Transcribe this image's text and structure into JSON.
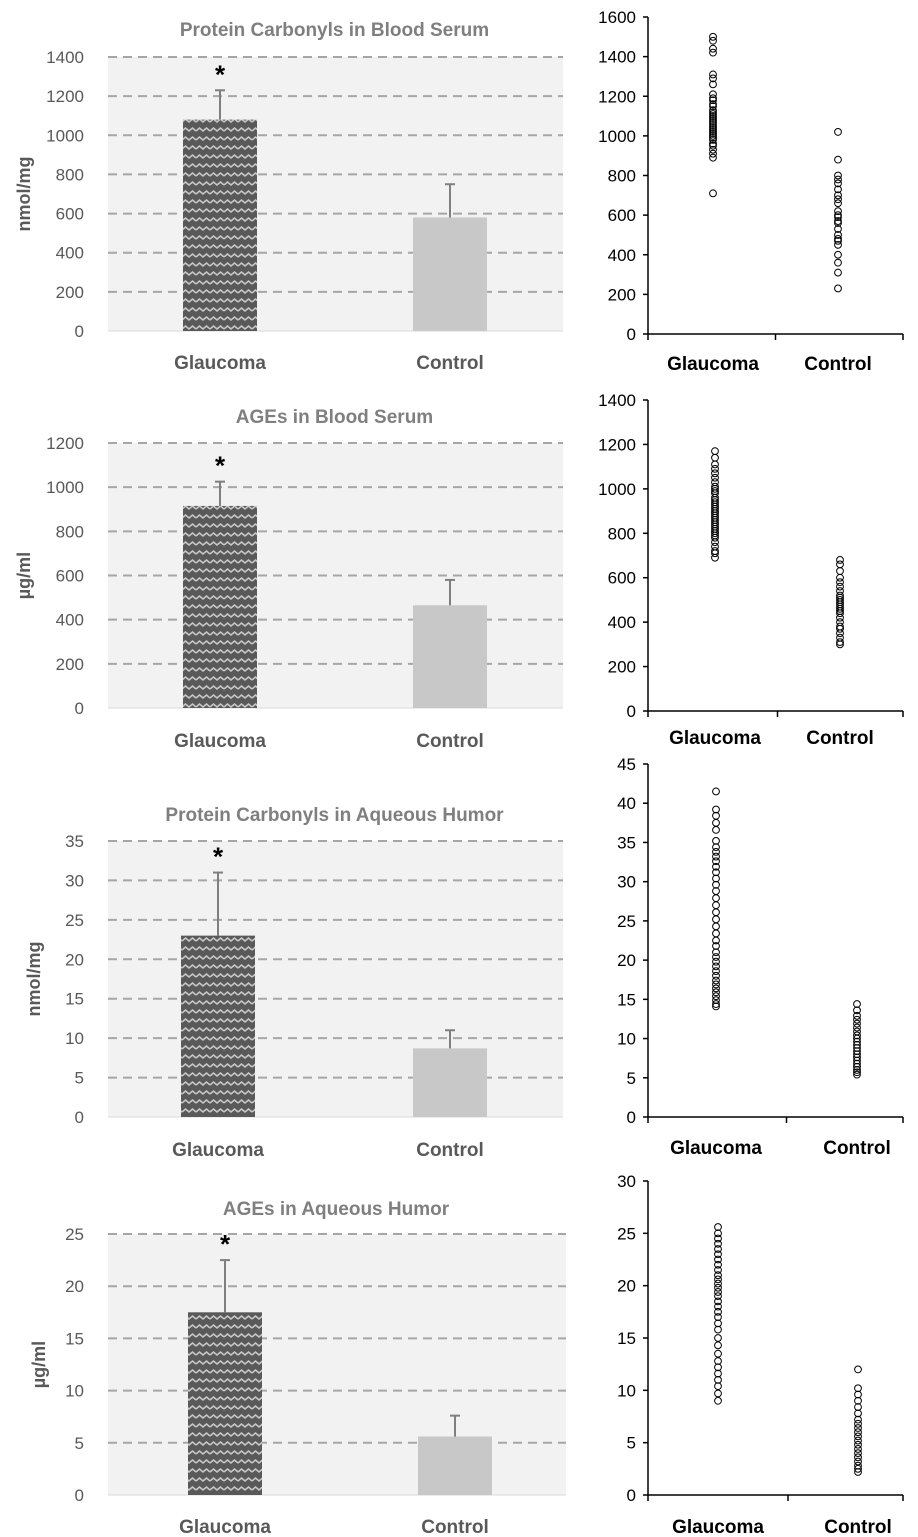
{
  "colors": {
    "plot_background": "#f2f2f2",
    "gridline": "#a6a6a6",
    "glaucoma_bar_base": "#595959",
    "glaucoma_bar_pattern": "#c8c8c8",
    "control_bar": "#c8c8c8",
    "error_bar": "#7f7f7f",
    "scatter_marker": "#000000"
  },
  "chart_data": [
    {
      "id": "bar1",
      "type": "bar",
      "title": "Protein Carbonyls in Blood Serum",
      "ylabel": "nmol/mg",
      "xlabel": "",
      "categories": [
        "Glaucoma",
        "Control"
      ],
      "values": [
        1080,
        580
      ],
      "error_plus": [
        150,
        170
      ],
      "significance": [
        "*",
        ""
      ],
      "ylim": [
        0,
        1400
      ],
      "yticks": [
        "0",
        "200",
        "400",
        "600",
        "800",
        "1000",
        "1200",
        "1400"
      ],
      "grid": true,
      "legend": "none"
    },
    {
      "id": "sc1",
      "type": "scatter",
      "title": "",
      "ylabel": "",
      "xlabel": "",
      "categories": [
        "Glaucoma",
        "Control"
      ],
      "series": [
        {
          "category": "Glaucoma",
          "y": [
            1500,
            1480,
            1440,
            1420,
            1310,
            1290,
            1260,
            1210,
            1190,
            1180,
            1160,
            1150,
            1130,
            1120,
            1110,
            1100,
            1090,
            1080,
            1070,
            1060,
            1050,
            1040,
            1030,
            1020,
            1010,
            1000,
            990,
            980,
            960,
            950,
            930,
            910,
            890,
            710
          ]
        },
        {
          "category": "Control",
          "y": [
            1020,
            880,
            800,
            780,
            760,
            730,
            700,
            680,
            660,
            620,
            600,
            590,
            570,
            560,
            530,
            500,
            480,
            470,
            450,
            400,
            360,
            310,
            230
          ]
        }
      ],
      "ylim": [
        0,
        1600
      ],
      "yticks": [
        "0",
        "200",
        "400",
        "600",
        "800",
        "1000",
        "1200",
        "1400",
        "1600"
      ],
      "grid": false,
      "legend": "none"
    },
    {
      "id": "bar2",
      "type": "bar",
      "title": "AGEs in Blood Serum",
      "ylabel": "µg/ml",
      "xlabel": "",
      "categories": [
        "Glaucoma",
        "Control"
      ],
      "values": [
        915,
        465
      ],
      "error_plus": [
        110,
        115
      ],
      "significance": [
        "*",
        ""
      ],
      "ylim": [
        0,
        1200
      ],
      "yticks": [
        "0",
        "200",
        "400",
        "600",
        "800",
        "1000",
        "1200"
      ],
      "grid": true,
      "legend": "none"
    },
    {
      "id": "sc2",
      "type": "scatter",
      "title": "",
      "ylabel": "",
      "xlabel": "",
      "categories": [
        "Glaucoma",
        "Control"
      ],
      "series": [
        {
          "category": "Glaucoma",
          "y": [
            1170,
            1140,
            1110,
            1090,
            1070,
            1050,
            1030,
            1010,
            1000,
            990,
            980,
            960,
            950,
            940,
            930,
            920,
            910,
            900,
            890,
            880,
            870,
            860,
            850,
            840,
            830,
            820,
            810,
            800,
            790,
            780,
            760,
            740,
            720,
            710,
            690
          ]
        },
        {
          "category": "Control",
          "y": [
            680,
            660,
            630,
            600,
            580,
            560,
            540,
            520,
            510,
            500,
            490,
            480,
            470,
            460,
            450,
            440,
            420,
            400,
            380,
            370,
            350,
            330,
            310,
            300
          ]
        }
      ],
      "ylim": [
        0,
        1400
      ],
      "yticks": [
        "0",
        "200",
        "400",
        "600",
        "800",
        "1000",
        "1200",
        "1400"
      ],
      "grid": false,
      "legend": "none"
    },
    {
      "id": "bar3",
      "type": "bar",
      "title": "Protein Carbonyls in Aqueous Humor",
      "ylabel": "nmol/mg",
      "xlabel": "",
      "categories": [
        "Glaucoma",
        "Control"
      ],
      "values": [
        23,
        8.7
      ],
      "error_plus": [
        8,
        2.3
      ],
      "significance": [
        "*",
        ""
      ],
      "ylim": [
        0,
        35
      ],
      "yticks": [
        "0",
        "5",
        "10",
        "15",
        "20",
        "25",
        "30",
        "35"
      ],
      "grid": true,
      "legend": "none"
    },
    {
      "id": "sc3",
      "type": "scatter",
      "title": "",
      "ylabel": "",
      "xlabel": "",
      "categories": [
        "Glaucoma",
        "Control"
      ],
      "series": [
        {
          "category": "Glaucoma",
          "y": [
            41.5,
            39.2,
            38.4,
            37.5,
            36.6,
            35.2,
            34.4,
            33.8,
            33.2,
            32.6,
            31.9,
            31.2,
            30.4,
            29.6,
            28.8,
            27.9,
            27.0,
            26.1,
            25.2,
            24.3,
            23.4,
            22.5,
            21.8,
            21.0,
            20.4,
            19.8,
            19.2,
            18.6,
            18.0,
            17.4,
            16.9,
            16.4,
            15.9,
            15.4,
            14.9,
            14.4,
            14.1
          ]
        },
        {
          "category": "Control",
          "y": [
            14.4,
            13.6,
            12.9,
            12.4,
            11.9,
            11.4,
            10.9,
            10.4,
            10.0,
            9.6,
            9.2,
            8.8,
            8.4,
            8.0,
            7.6,
            7.2,
            6.8,
            6.4,
            6.0,
            5.7,
            5.4
          ]
        }
      ],
      "ylim": [
        0,
        45
      ],
      "yticks": [
        "0",
        "5",
        "10",
        "15",
        "20",
        "25",
        "30",
        "35",
        "40",
        "45"
      ],
      "grid": false,
      "legend": "none"
    },
    {
      "id": "bar4",
      "type": "bar",
      "title": "AGEs in Aqueous Humor",
      "ylabel": "µg/ml",
      "xlabel": "",
      "categories": [
        "Glaucoma",
        "Control"
      ],
      "values": [
        17.5,
        5.6
      ],
      "error_plus": [
        5,
        2
      ],
      "significance": [
        "*",
        ""
      ],
      "ylim": [
        0,
        25
      ],
      "yticks": [
        "0",
        "5",
        "10",
        "15",
        "20",
        "25"
      ],
      "grid": true,
      "legend": "none"
    },
    {
      "id": "sc4",
      "type": "scatter",
      "title": "",
      "ylabel": "",
      "xlabel": "",
      "categories": [
        "Glaucoma",
        "Control"
      ],
      "series": [
        {
          "category": "Glaucoma",
          "y": [
            25.6,
            25.0,
            24.5,
            24.0,
            23.5,
            23.0,
            22.5,
            22.0,
            21.5,
            21.0,
            20.6,
            20.2,
            19.8,
            19.4,
            19.0,
            18.5,
            18.0,
            17.5,
            17.0,
            16.4,
            15.8,
            15.0,
            14.3,
            13.5,
            12.8,
            12.2,
            11.6,
            11.0,
            10.4,
            9.7,
            9.0
          ]
        },
        {
          "category": "Control",
          "y": [
            12.0,
            10.2,
            9.6,
            9.0,
            8.4,
            7.8,
            7.2,
            6.8,
            6.4,
            6.0,
            5.6,
            5.2,
            4.8,
            4.4,
            4.0,
            3.6,
            3.2,
            2.8,
            2.5,
            2.2
          ]
        }
      ],
      "ylim": [
        0,
        30
      ],
      "yticks": [
        "0",
        "5",
        "10",
        "15",
        "20",
        "25",
        "30"
      ],
      "grid": false,
      "legend": "none"
    }
  ]
}
